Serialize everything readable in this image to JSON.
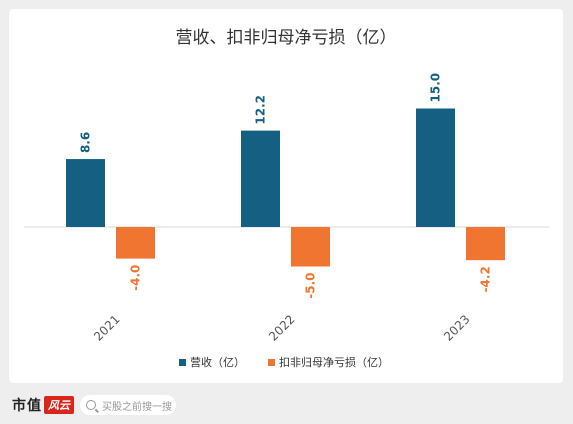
{
  "chart_data": {
    "type": "bar",
    "title": "营收、扣非归母净亏损（亿）",
    "categories": [
      "2021",
      "2022",
      "2023"
    ],
    "series": [
      {
        "name": "营收（亿）",
        "values": [
          8.6,
          12.2,
          15.0
        ],
        "labels": [
          "8.6",
          "12.2",
          "15.0"
        ],
        "color": "#155f82"
      },
      {
        "name": "扣非归母净亏损（亿）",
        "values": [
          -4.0,
          -5.0,
          -4.2
        ],
        "labels": [
          "-4.0",
          "-5.0",
          "-4.2"
        ],
        "color": "#ef7530"
      }
    ],
    "ylim": [
      -12,
      17
    ],
    "grid": false,
    "legend_position": "bottom"
  },
  "footer": {
    "brand": "市值",
    "brand_logo": "风云",
    "search_placeholder": "买股之前搜一搜",
    "search_icon": "search-icon"
  }
}
